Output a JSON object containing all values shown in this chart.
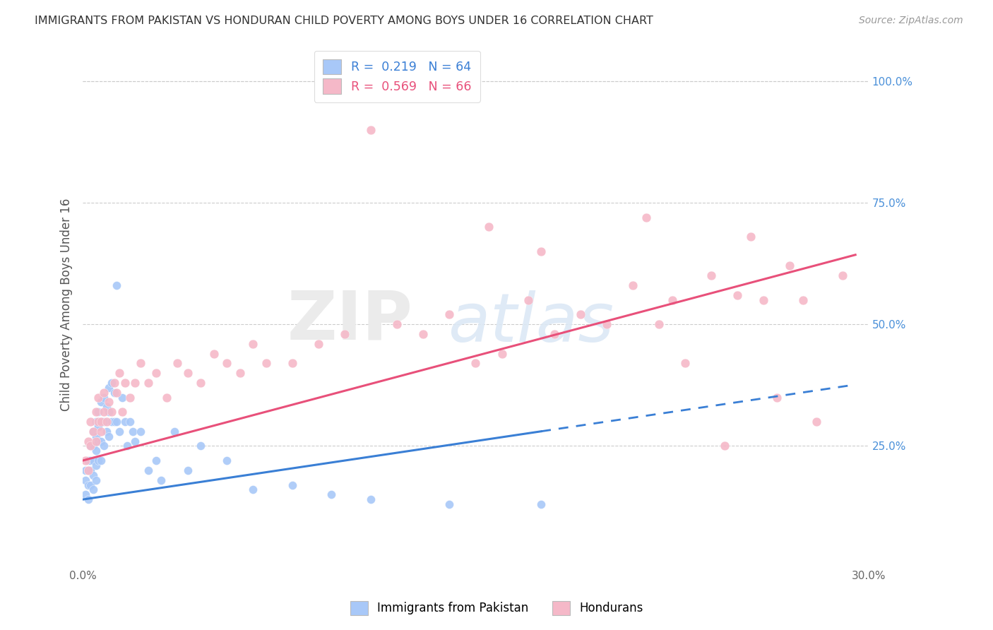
{
  "title": "IMMIGRANTS FROM PAKISTAN VS HONDURAN CHILD POVERTY AMONG BOYS UNDER 16 CORRELATION CHART",
  "source": "Source: ZipAtlas.com",
  "ylabel": "Child Poverty Among Boys Under 16",
  "right_yticks": [
    "100.0%",
    "75.0%",
    "50.0%",
    "25.0%"
  ],
  "right_ytick_vals": [
    1.0,
    0.75,
    0.5,
    0.25
  ],
  "xlim": [
    0.0,
    0.3
  ],
  "ylim": [
    0.0,
    1.08
  ],
  "legend_label1": "Immigrants from Pakistan",
  "legend_label2": "Hondurans",
  "blue_color": "#a8c8f8",
  "pink_color": "#f5b8c8",
  "trend_blue": "#3a7fd5",
  "trend_pink": "#e8507a",
  "pakistan_x": [
    0.001,
    0.001,
    0.001,
    0.002,
    0.002,
    0.002,
    0.002,
    0.003,
    0.003,
    0.003,
    0.003,
    0.004,
    0.004,
    0.004,
    0.004,
    0.004,
    0.005,
    0.005,
    0.005,
    0.005,
    0.005,
    0.006,
    0.006,
    0.006,
    0.006,
    0.007,
    0.007,
    0.007,
    0.007,
    0.008,
    0.008,
    0.008,
    0.009,
    0.009,
    0.01,
    0.01,
    0.01,
    0.011,
    0.011,
    0.012,
    0.012,
    0.013,
    0.013,
    0.014,
    0.015,
    0.016,
    0.017,
    0.018,
    0.019,
    0.02,
    0.022,
    0.025,
    0.028,
    0.03,
    0.035,
    0.04,
    0.045,
    0.055,
    0.065,
    0.08,
    0.095,
    0.11,
    0.14,
    0.175
  ],
  "pakistan_y": [
    0.2,
    0.18,
    0.15,
    0.22,
    0.2,
    0.17,
    0.14,
    0.25,
    0.22,
    0.2,
    0.17,
    0.28,
    0.25,
    0.22,
    0.19,
    0.16,
    0.3,
    0.27,
    0.24,
    0.21,
    0.18,
    0.32,
    0.29,
    0.26,
    0.22,
    0.34,
    0.3,
    0.26,
    0.22,
    0.35,
    0.3,
    0.25,
    0.33,
    0.28,
    0.37,
    0.32,
    0.27,
    0.38,
    0.3,
    0.36,
    0.3,
    0.58,
    0.3,
    0.28,
    0.35,
    0.3,
    0.25,
    0.3,
    0.28,
    0.26,
    0.28,
    0.2,
    0.22,
    0.18,
    0.28,
    0.2,
    0.25,
    0.22,
    0.16,
    0.17,
    0.15,
    0.14,
    0.13,
    0.13
  ],
  "honduran_x": [
    0.001,
    0.002,
    0.002,
    0.003,
    0.003,
    0.004,
    0.005,
    0.005,
    0.006,
    0.006,
    0.007,
    0.007,
    0.008,
    0.008,
    0.009,
    0.01,
    0.011,
    0.012,
    0.013,
    0.014,
    0.015,
    0.016,
    0.018,
    0.02,
    0.022,
    0.025,
    0.028,
    0.032,
    0.036,
    0.04,
    0.045,
    0.05,
    0.055,
    0.06,
    0.065,
    0.07,
    0.08,
    0.09,
    0.1,
    0.11,
    0.12,
    0.13,
    0.14,
    0.15,
    0.155,
    0.16,
    0.17,
    0.175,
    0.18,
    0.19,
    0.2,
    0.21,
    0.215,
    0.22,
    0.225,
    0.23,
    0.24,
    0.245,
    0.25,
    0.255,
    0.26,
    0.265,
    0.27,
    0.275,
    0.28,
    0.29
  ],
  "honduran_y": [
    0.22,
    0.26,
    0.2,
    0.3,
    0.25,
    0.28,
    0.32,
    0.26,
    0.35,
    0.3,
    0.3,
    0.28,
    0.36,
    0.32,
    0.3,
    0.34,
    0.32,
    0.38,
    0.36,
    0.4,
    0.32,
    0.38,
    0.35,
    0.38,
    0.42,
    0.38,
    0.4,
    0.35,
    0.42,
    0.4,
    0.38,
    0.44,
    0.42,
    0.4,
    0.46,
    0.42,
    0.42,
    0.46,
    0.48,
    0.9,
    0.5,
    0.48,
    0.52,
    0.42,
    0.7,
    0.44,
    0.55,
    0.65,
    0.48,
    0.52,
    0.5,
    0.58,
    0.72,
    0.5,
    0.55,
    0.42,
    0.6,
    0.25,
    0.56,
    0.68,
    0.55,
    0.35,
    0.62,
    0.55,
    0.3,
    0.6
  ]
}
